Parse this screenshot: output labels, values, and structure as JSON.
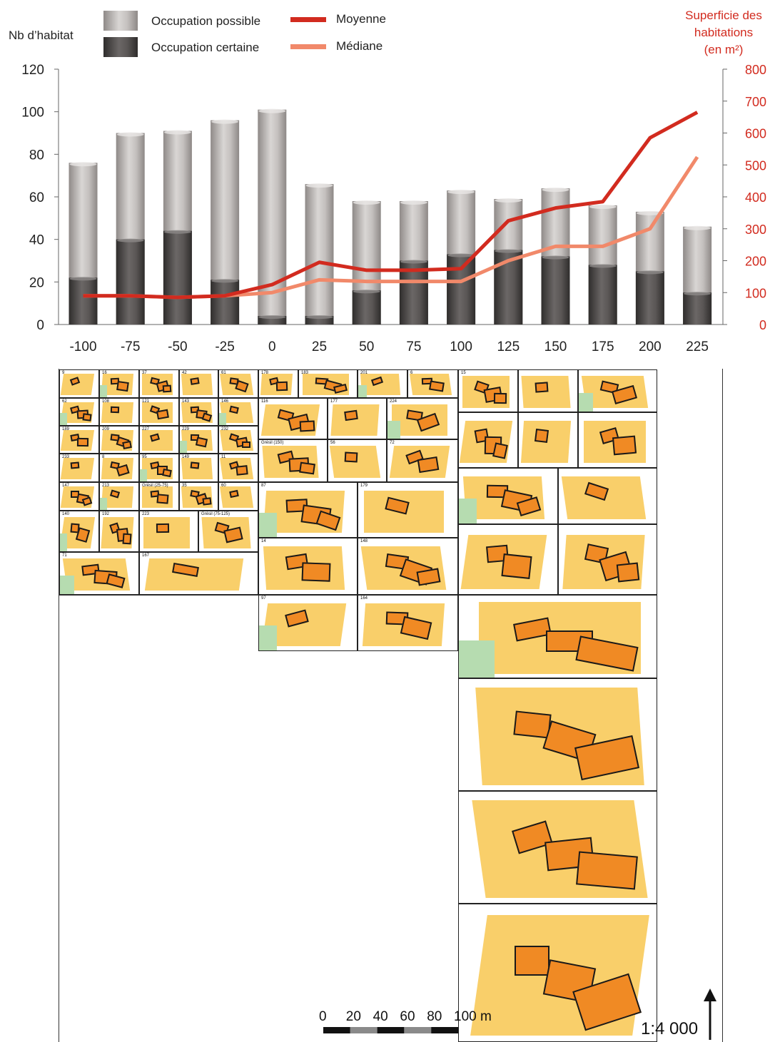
{
  "chart_data": {
    "type": "bar",
    "categories": [
      "-100",
      "-75",
      "-50",
      "-25",
      "0",
      "25",
      "50",
      "75",
      "100",
      "125",
      "150",
      "175",
      "200",
      "225"
    ],
    "series": [
      {
        "name": "Occupation possible",
        "kind": "bar-total",
        "color": "#b3aeab",
        "values": [
          76,
          90,
          91,
          96,
          101,
          66,
          58,
          58,
          63,
          59,
          64,
          56,
          53,
          46
        ]
      },
      {
        "name": "Occupation certaine",
        "kind": "bar-stacked-bottom",
        "color": "#4a4746",
        "values": [
          22,
          40,
          44,
          21,
          4,
          4,
          16,
          30,
          33,
          35,
          32,
          28,
          25,
          15
        ]
      },
      {
        "name": "Moyenne",
        "kind": "line",
        "axis": "right",
        "color": "#d22b1f",
        "values": [
          90,
          90,
          85,
          90,
          125,
          195,
          170,
          170,
          175,
          325,
          365,
          385,
          585,
          665
        ]
      },
      {
        "name": "Médiane",
        "kind": "line",
        "axis": "right",
        "color": "#f1896a",
        "values": [
          90,
          90,
          85,
          90,
          100,
          140,
          135,
          135,
          135,
          200,
          245,
          245,
          300,
          525
        ]
      }
    ],
    "ylabel": "Nb d’habitat",
    "ylim": [
      0,
      120
    ],
    "yticks": [
      "0",
      "20",
      "40",
      "60",
      "80",
      "100",
      "120"
    ],
    "y2label_lines": [
      "Superficie des",
      "habitations",
      "(en m²)"
    ],
    "y2lim": [
      0,
      800
    ],
    "y2ticks": [
      "0",
      "100",
      "200",
      "300",
      "400",
      "500",
      "600",
      "700",
      "800"
    ],
    "legend": {
      "possible": "Occupation possible",
      "certaine": "Occupation certaine",
      "moyenne": "Moyenne",
      "mediane": "Médiane"
    },
    "grid": false,
    "legend_placement": "top"
  },
  "plans": {
    "scale_ticks": [
      "0",
      "20",
      "40",
      "60",
      "80",
      "100 m"
    ],
    "scale_ratio": "1:4 000",
    "labels": [
      "9",
      "16",
      "37",
      "42",
      "61",
      "62",
      "108",
      "121",
      "143",
      "146",
      "189",
      "209",
      "227",
      "229",
      "232",
      "233",
      "8",
      "95",
      "149",
      "11",
      "147",
      "213",
      "Grésil (25-75)",
      "35",
      "60",
      "140",
      "192",
      "223",
      "Grésil (75-125)",
      "71",
      "167",
      "178",
      "183",
      "201",
      "6",
      "116",
      "177",
      "224",
      "Grésil (150)",
      "56",
      "72",
      "87",
      "179",
      "14",
      "148",
      "97",
      "164",
      "15"
    ]
  }
}
